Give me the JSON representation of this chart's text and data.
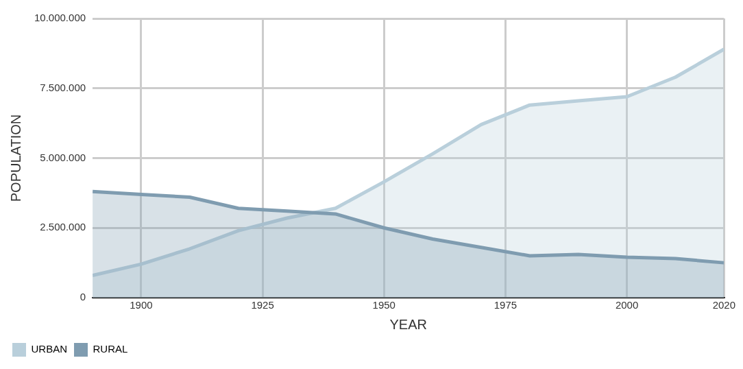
{
  "chart_data": {
    "type": "area",
    "xlabel": "YEAR",
    "ylabel": "POPULATION",
    "x": [
      1890,
      1900,
      1910,
      1920,
      1930,
      1940,
      1950,
      1960,
      1970,
      1980,
      1990,
      2000,
      2010,
      2020
    ],
    "series": [
      {
        "name": "URBAN",
        "color": "#b9cfdb",
        "values": [
          800000,
          1200000,
          1750000,
          2400000,
          2850000,
          3200000,
          4150000,
          5150000,
          6200000,
          6900000,
          7050000,
          7200000,
          7900000,
          8900000
        ]
      },
      {
        "name": "RURAL",
        "color": "#7f9cb0",
        "values": [
          3800000,
          3700000,
          3600000,
          3200000,
          3100000,
          3000000,
          2500000,
          2100000,
          1800000,
          1500000,
          1550000,
          1450000,
          1400000,
          1250000
        ]
      }
    ],
    "xlim": [
      1890,
      2020
    ],
    "xticks": [
      1900,
      1925,
      1950,
      1975,
      2000,
      2020
    ],
    "ylim": [
      0,
      10000000
    ],
    "yticks": [
      0,
      {
        "value": 2500000,
        "label": "2.500.000"
      },
      {
        "value": 5000000,
        "label": "5.000.000"
      },
      {
        "value": 7500000,
        "label": "7.500.000"
      },
      {
        "value": 10000000,
        "label": "10.000.000"
      }
    ],
    "grid": true,
    "legend": "bottom left",
    "marker": "none",
    "line_style": "solid"
  }
}
